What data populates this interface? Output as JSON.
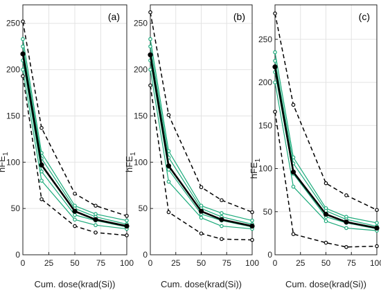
{
  "chart_data": [
    {
      "type": "line",
      "panel_label": "(a)",
      "xlabel": "Cum. dose(krad(Si))",
      "ylabel": "hFE",
      "ylabel_sub": "1",
      "x": [
        0,
        18,
        50,
        70,
        100
      ],
      "xticks": [
        "0",
        "25",
        "50",
        "75",
        "100"
      ],
      "xlim": [
        0,
        100
      ],
      "ylim": [
        0,
        270
      ],
      "yticks": [
        "0",
        "50",
        "100",
        "150",
        "200",
        "250"
      ],
      "grid": true,
      "series": [
        {
          "role": "bound",
          "color": "#000000",
          "dashed": true,
          "values": [
            252,
            137,
            66,
            53,
            42
          ]
        },
        {
          "role": "bound",
          "color": "#000000",
          "dashed": true,
          "values": [
            193,
            60,
            31,
            24,
            21
          ]
        },
        {
          "role": "sample",
          "color": "#1aaa7a",
          "values": [
            233,
            110,
            53,
            44,
            37
          ]
        },
        {
          "role": "sample",
          "color": "#1aaa7a",
          "values": [
            225,
            104,
            50,
            41,
            33
          ]
        },
        {
          "role": "sample",
          "color": "#1aaa7a",
          "values": [
            210,
            90,
            43,
            37,
            30
          ]
        },
        {
          "role": "sample",
          "color": "#1aaa7a",
          "values": [
            200,
            80,
            38,
            32,
            28
          ]
        },
        {
          "role": "mean",
          "color": "#000000",
          "values": [
            217,
            97,
            47,
            38,
            31
          ]
        }
      ]
    },
    {
      "type": "line",
      "panel_label": "(b)",
      "xlabel": "Cum. dose(krad(Si))",
      "ylabel": "hFE",
      "ylabel_sub": "1",
      "x": [
        0,
        18,
        50,
        70,
        100
      ],
      "xticks": [
        "0",
        "25",
        "50",
        "75",
        "100"
      ],
      "xlim": [
        0,
        100
      ],
      "ylim": [
        0,
        270
      ],
      "yticks": [
        "0",
        "50",
        "100",
        "150",
        "200",
        "250"
      ],
      "grid": true,
      "series": [
        {
          "role": "bound",
          "color": "#000000",
          "dashed": true,
          "values": [
            262,
            151,
            73,
            59,
            46
          ]
        },
        {
          "role": "bound",
          "color": "#000000",
          "dashed": true,
          "values": [
            183,
            46,
            23,
            17,
            16
          ]
        },
        {
          "role": "sample",
          "color": "#1aaa7a",
          "values": [
            233,
            112,
            53,
            45,
            37
          ]
        },
        {
          "role": "sample",
          "color": "#1aaa7a",
          "values": [
            225,
            105,
            50,
            41,
            33
          ]
        },
        {
          "role": "sample",
          "color": "#1aaa7a",
          "values": [
            210,
            92,
            44,
            37,
            30
          ]
        },
        {
          "role": "sample",
          "color": "#1aaa7a",
          "values": [
            200,
            79,
            40,
            31,
            28
          ]
        },
        {
          "role": "mean",
          "color": "#000000",
          "values": [
            216,
            96,
            47,
            38,
            31
          ]
        }
      ]
    },
    {
      "type": "line",
      "panel_label": "(c)",
      "xlabel": "Cum. dose(krad(Si))",
      "ylabel": "hFE",
      "ylabel_sub": "1",
      "x": [
        0,
        18,
        50,
        70,
        100
      ],
      "xticks": [
        "0",
        "25",
        "50",
        "75",
        "100"
      ],
      "xlim": [
        0,
        100
      ],
      "ylim": [
        0,
        290
      ],
      "yticks": [
        "0",
        "50",
        "100",
        "150",
        "200",
        "250"
      ],
      "grid": true,
      "series": [
        {
          "role": "bound",
          "color": "#000000",
          "dashed": true,
          "values": [
            280,
            174,
            83,
            69,
            52
          ]
        },
        {
          "role": "bound",
          "color": "#000000",
          "dashed": true,
          "values": [
            166,
            24,
            14,
            9,
            10
          ]
        },
        {
          "role": "sample",
          "color": "#1aaa7a",
          "values": [
            235,
            113,
            54,
            44,
            37
          ]
        },
        {
          "role": "sample",
          "color": "#1aaa7a",
          "values": [
            225,
            106,
            51,
            41,
            33
          ]
        },
        {
          "role": "sample",
          "color": "#1aaa7a",
          "values": [
            212,
            94,
            44,
            37,
            30
          ]
        },
        {
          "role": "sample",
          "color": "#1aaa7a",
          "values": [
            200,
            79,
            39,
            31,
            28
          ]
        },
        {
          "role": "mean",
          "color": "#000000",
          "values": [
            218,
            96,
            47,
            38,
            31
          ]
        }
      ]
    }
  ]
}
